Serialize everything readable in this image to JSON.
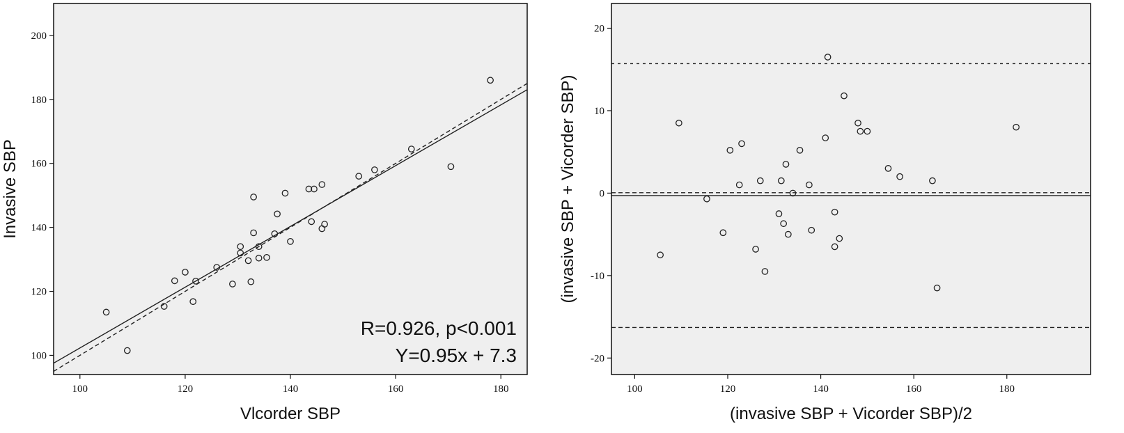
{
  "chart_data": [
    {
      "type": "scatter",
      "xlabel": "Vlcorder SBP",
      "ylabel": "Invasive SBP",
      "xlim": [
        95,
        185
      ],
      "ylim": [
        94,
        210
      ],
      "x_ticks": [
        100,
        120,
        140,
        160,
        180
      ],
      "y_ticks": [
        100,
        120,
        140,
        160,
        180,
        200
      ],
      "grid": false,
      "background": "#efefef",
      "annotations": [
        "R=0.926, p<0.001",
        "Y=0.95x + 7.3"
      ],
      "points": [
        {
          "x": 105.0,
          "y": 113.5
        },
        {
          "x": 109.0,
          "y": 101.5
        },
        {
          "x": 116.0,
          "y": 115.3
        },
        {
          "x": 118.0,
          "y": 123.3
        },
        {
          "x": 120.0,
          "y": 126.0
        },
        {
          "x": 121.5,
          "y": 116.8
        },
        {
          "x": 122.0,
          "y": 123.2
        },
        {
          "x": 126.0,
          "y": 127.5
        },
        {
          "x": 129.0,
          "y": 122.3
        },
        {
          "x": 130.5,
          "y": 134.0
        },
        {
          "x": 130.5,
          "y": 132.0
        },
        {
          "x": 132.0,
          "y": 129.6
        },
        {
          "x": 132.5,
          "y": 123.0
        },
        {
          "x": 133.0,
          "y": 149.5
        },
        {
          "x": 133.0,
          "y": 138.3
        },
        {
          "x": 134.0,
          "y": 134.0
        },
        {
          "x": 134.0,
          "y": 130.4
        },
        {
          "x": 135.5,
          "y": 130.6
        },
        {
          "x": 137.0,
          "y": 138.0
        },
        {
          "x": 137.5,
          "y": 144.2
        },
        {
          "x": 139.0,
          "y": 150.7
        },
        {
          "x": 140.0,
          "y": 135.6
        },
        {
          "x": 143.5,
          "y": 152.0
        },
        {
          "x": 144.0,
          "y": 141.8
        },
        {
          "x": 144.5,
          "y": 152.0
        },
        {
          "x": 146.0,
          "y": 153.4
        },
        {
          "x": 146.0,
          "y": 139.6
        },
        {
          "x": 146.5,
          "y": 141.0
        },
        {
          "x": 153.0,
          "y": 156.0
        },
        {
          "x": 156.0,
          "y": 158.0
        },
        {
          "x": 163.0,
          "y": 164.5
        },
        {
          "x": 170.5,
          "y": 159.0
        },
        {
          "x": 178.0,
          "y": 186.0
        }
      ],
      "lines": [
        {
          "style": "solid",
          "slope": 0.95,
          "intercept": 7.3
        },
        {
          "style": "dashed",
          "slope": 1.0,
          "intercept": 0
        }
      ]
    },
    {
      "type": "scatter",
      "xlabel": "(invasive SBP + Vicorder SBP)/2",
      "ylabel": "(invasive SBP + Vicorder SBP)",
      "xlim": [
        95,
        198
      ],
      "ylim": [
        -22,
        23
      ],
      "x_ticks": [
        100,
        120,
        140,
        160,
        180
      ],
      "y_ticks": [
        -20,
        -10,
        0,
        10,
        20
      ],
      "grid": false,
      "background": "#efefef",
      "points": [
        {
          "x": 105.5,
          "y": -7.5
        },
        {
          "x": 109.5,
          "y": 8.5
        },
        {
          "x": 115.5,
          "y": -0.7
        },
        {
          "x": 119.0,
          "y": -4.8
        },
        {
          "x": 120.5,
          "y": 5.2
        },
        {
          "x": 122.5,
          "y": 1.0
        },
        {
          "x": 123.0,
          "y": 6.0
        },
        {
          "x": 126.0,
          "y": -6.8
        },
        {
          "x": 127.0,
          "y": 1.5
        },
        {
          "x": 128.0,
          "y": -9.5
        },
        {
          "x": 131.0,
          "y": -2.5
        },
        {
          "x": 131.5,
          "y": 1.5
        },
        {
          "x": 132.0,
          "y": -3.7
        },
        {
          "x": 132.5,
          "y": 3.5
        },
        {
          "x": 133.0,
          "y": -5.0
        },
        {
          "x": 134.0,
          "y": 0.0
        },
        {
          "x": 135.5,
          "y": 5.2
        },
        {
          "x": 137.5,
          "y": 1.0
        },
        {
          "x": 138.0,
          "y": -4.5
        },
        {
          "x": 141.0,
          "y": 6.7
        },
        {
          "x": 141.5,
          "y": 16.5
        },
        {
          "x": 143.0,
          "y": -6.5
        },
        {
          "x": 143.0,
          "y": -2.3
        },
        {
          "x": 144.0,
          "y": -5.5
        },
        {
          "x": 145.0,
          "y": 11.8
        },
        {
          "x": 148.0,
          "y": 8.5
        },
        {
          "x": 148.5,
          "y": 7.5
        },
        {
          "x": 150.0,
          "y": 7.5
        },
        {
          "x": 154.5,
          "y": 3.0
        },
        {
          "x": 157.0,
          "y": 2.0
        },
        {
          "x": 164.0,
          "y": 1.5
        },
        {
          "x": 165.0,
          "y": -11.5
        },
        {
          "x": 182.0,
          "y": 8.0
        }
      ],
      "hlines": [
        {
          "y": 15.7,
          "style": "dotted"
        },
        {
          "y": 0.05,
          "style": "dashed"
        },
        {
          "y": -0.3,
          "style": "solid"
        },
        {
          "y": -16.3,
          "style": "dashed"
        }
      ]
    }
  ]
}
